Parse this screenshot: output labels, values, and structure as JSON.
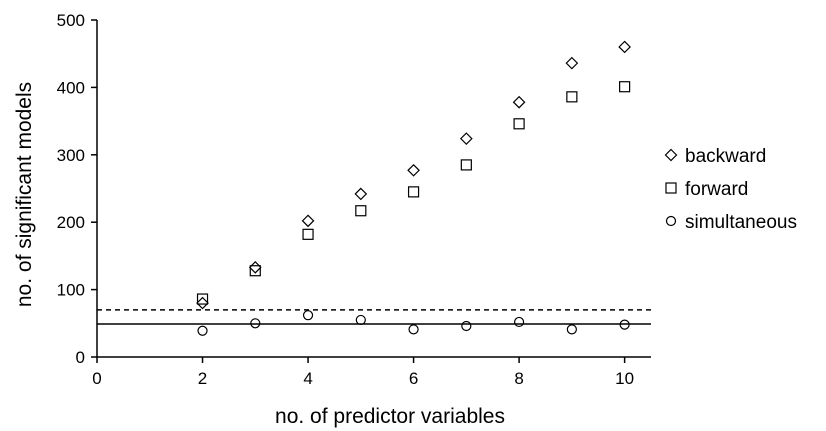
{
  "chart_data": {
    "type": "scatter",
    "xlabel": "no. of predictor variables",
    "ylabel": "no. of significant models",
    "xlim": [
      0,
      10.5
    ],
    "ylim": [
      0,
      500
    ],
    "xticks": [
      "0",
      "2",
      "4",
      "6",
      "8",
      "10"
    ],
    "yticks": [
      "0",
      "100",
      "200",
      "300",
      "400",
      "500"
    ],
    "grid": false,
    "legend_position": "right",
    "x": [
      2,
      3,
      4,
      5,
      6,
      7,
      8,
      9,
      10
    ],
    "series": [
      {
        "name": "backward",
        "marker": "diamond",
        "values": [
          80,
          133,
          202,
          242,
          277,
          324,
          378,
          436,
          460
        ]
      },
      {
        "name": "forward",
        "marker": "square",
        "values": [
          86,
          128,
          182,
          217,
          245,
          285,
          346,
          386,
          401
        ]
      },
      {
        "name": "simultaneous",
        "marker": "circle",
        "values": [
          39,
          50,
          62,
          55,
          41,
          46,
          52,
          41,
          48
        ]
      }
    ],
    "reference_lines": [
      {
        "style": "dashed",
        "y": 70
      },
      {
        "style": "solid",
        "y": 49
      }
    ],
    "colors": {
      "marker": "#000000",
      "axis": "#000000"
    }
  }
}
